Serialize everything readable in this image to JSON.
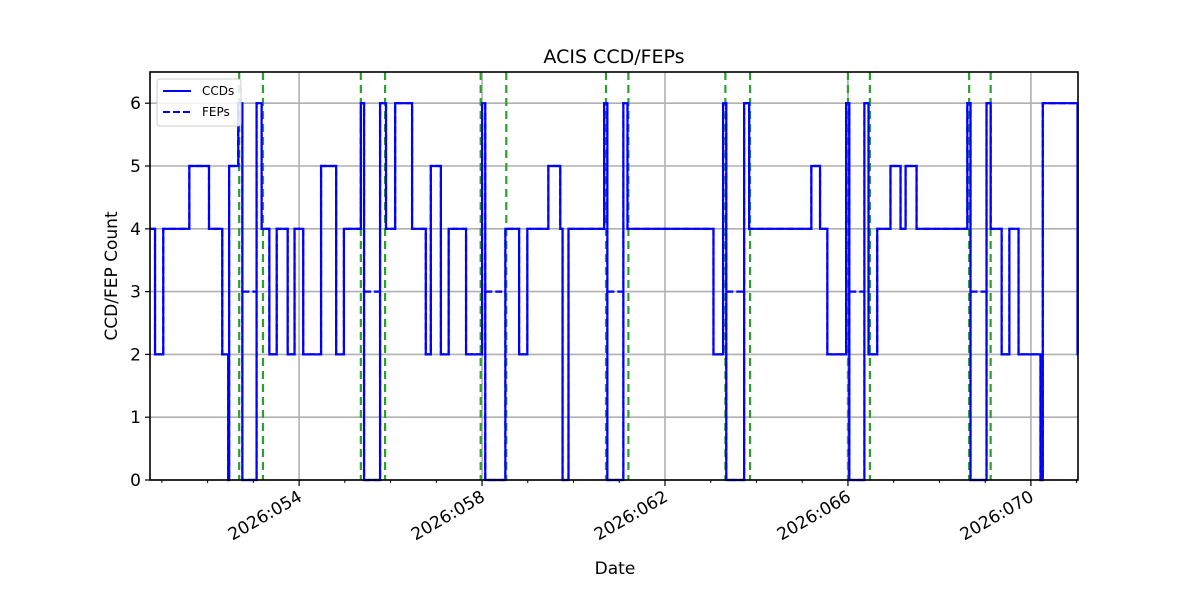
{
  "chart_data": {
    "type": "line",
    "title": "ACIS CCD/FEPs",
    "xlabel": "Date",
    "ylabel": "CCD/FEP Count",
    "ylim": [
      0,
      6.5
    ],
    "xlim_doy": [
      50.74,
      71.03
    ],
    "yticks": [
      0,
      1,
      2,
      3,
      4,
      5,
      6
    ],
    "xticks": [
      {
        "doy": 54,
        "label": "2026:054"
      },
      {
        "doy": 58,
        "label": "2026:058"
      },
      {
        "doy": 62,
        "label": "2026:062"
      },
      {
        "doy": 66,
        "label": "2026:066"
      },
      {
        "doy": 70,
        "label": "2026:070"
      }
    ],
    "minor_xtick_step_days": 1,
    "grid": true,
    "legend": {
      "position": "upper left",
      "entries": [
        {
          "label": "CCDs",
          "style": "solid",
          "color": "#0000ff"
        },
        {
          "label": "FEPs",
          "style": "dashed",
          "color": "#0000ff"
        }
      ]
    },
    "series": [
      {
        "name": "CCDs",
        "color": "#0000ff",
        "style": "solid",
        "step": "post",
        "points": [
          [
            50.74,
            4
          ],
          [
            50.85,
            2
          ],
          [
            51.03,
            4
          ],
          [
            51.6,
            5
          ],
          [
            52.03,
            4
          ],
          [
            52.32,
            2
          ],
          [
            52.45,
            0
          ],
          [
            52.47,
            5
          ],
          [
            52.67,
            6
          ],
          [
            52.76,
            0
          ],
          [
            53.07,
            6
          ],
          [
            53.18,
            4
          ],
          [
            53.35,
            2
          ],
          [
            53.51,
            4
          ],
          [
            53.75,
            2
          ],
          [
            53.9,
            4
          ],
          [
            54.09,
            2
          ],
          [
            54.48,
            5
          ],
          [
            54.81,
            2
          ],
          [
            54.98,
            4
          ],
          [
            55.35,
            6
          ],
          [
            55.42,
            0
          ],
          [
            55.77,
            6
          ],
          [
            55.9,
            4
          ],
          [
            56.1,
            6
          ],
          [
            56.47,
            4
          ],
          [
            56.77,
            2
          ],
          [
            56.88,
            5
          ],
          [
            57.1,
            2
          ],
          [
            57.27,
            4
          ],
          [
            57.65,
            2
          ],
          [
            58.0,
            6
          ],
          [
            58.07,
            0
          ],
          [
            58.51,
            4
          ],
          [
            58.81,
            2
          ],
          [
            58.99,
            4
          ],
          [
            59.45,
            5
          ],
          [
            59.71,
            4
          ],
          [
            59.76,
            0
          ],
          [
            59.89,
            4
          ],
          [
            60.67,
            6
          ],
          [
            60.74,
            0
          ],
          [
            61.09,
            6
          ],
          [
            61.18,
            4
          ],
          [
            63.06,
            2
          ],
          [
            63.27,
            6
          ],
          [
            63.34,
            0
          ],
          [
            63.73,
            6
          ],
          [
            63.84,
            4
          ],
          [
            65.2,
            5
          ],
          [
            65.39,
            4
          ],
          [
            65.55,
            2
          ],
          [
            65.96,
            6
          ],
          [
            66.03,
            0
          ],
          [
            66.36,
            6
          ],
          [
            66.45,
            2
          ],
          [
            66.64,
            4
          ],
          [
            66.93,
            5
          ],
          [
            67.15,
            4
          ],
          [
            67.26,
            5
          ],
          [
            67.5,
            4
          ],
          [
            68.61,
            6
          ],
          [
            68.68,
            0
          ],
          [
            69.03,
            6
          ],
          [
            69.12,
            4
          ],
          [
            69.36,
            2
          ],
          [
            69.53,
            4
          ],
          [
            69.73,
            2
          ],
          [
            70.21,
            0
          ],
          [
            70.26,
            6
          ],
          [
            71.02,
            2
          ]
        ]
      },
      {
        "name": "FEPs",
        "color": "#0000ff",
        "style": "dashed",
        "step": "post",
        "note": "identical to CCDs except value 3 during the zero-CCD intervals",
        "points": [
          [
            52.76,
            3
          ],
          [
            53.07,
            6
          ],
          [
            55.42,
            3
          ],
          [
            55.77,
            6
          ],
          [
            58.07,
            3
          ],
          [
            58.51,
            4
          ],
          [
            60.74,
            3
          ],
          [
            61.09,
            6
          ],
          [
            63.34,
            3
          ],
          [
            63.73,
            6
          ],
          [
            66.03,
            3
          ],
          [
            66.36,
            6
          ],
          [
            68.68,
            3
          ],
          [
            69.03,
            6
          ]
        ]
      }
    ],
    "vlines": {
      "color": "#2ca02c",
      "style": "dashed",
      "doy": [
        52.69,
        53.21,
        55.35,
        55.88,
        57.97,
        58.53,
        60.71,
        61.2,
        63.32,
        63.86,
        66.0,
        66.48,
        68.65,
        69.12
      ]
    }
  }
}
